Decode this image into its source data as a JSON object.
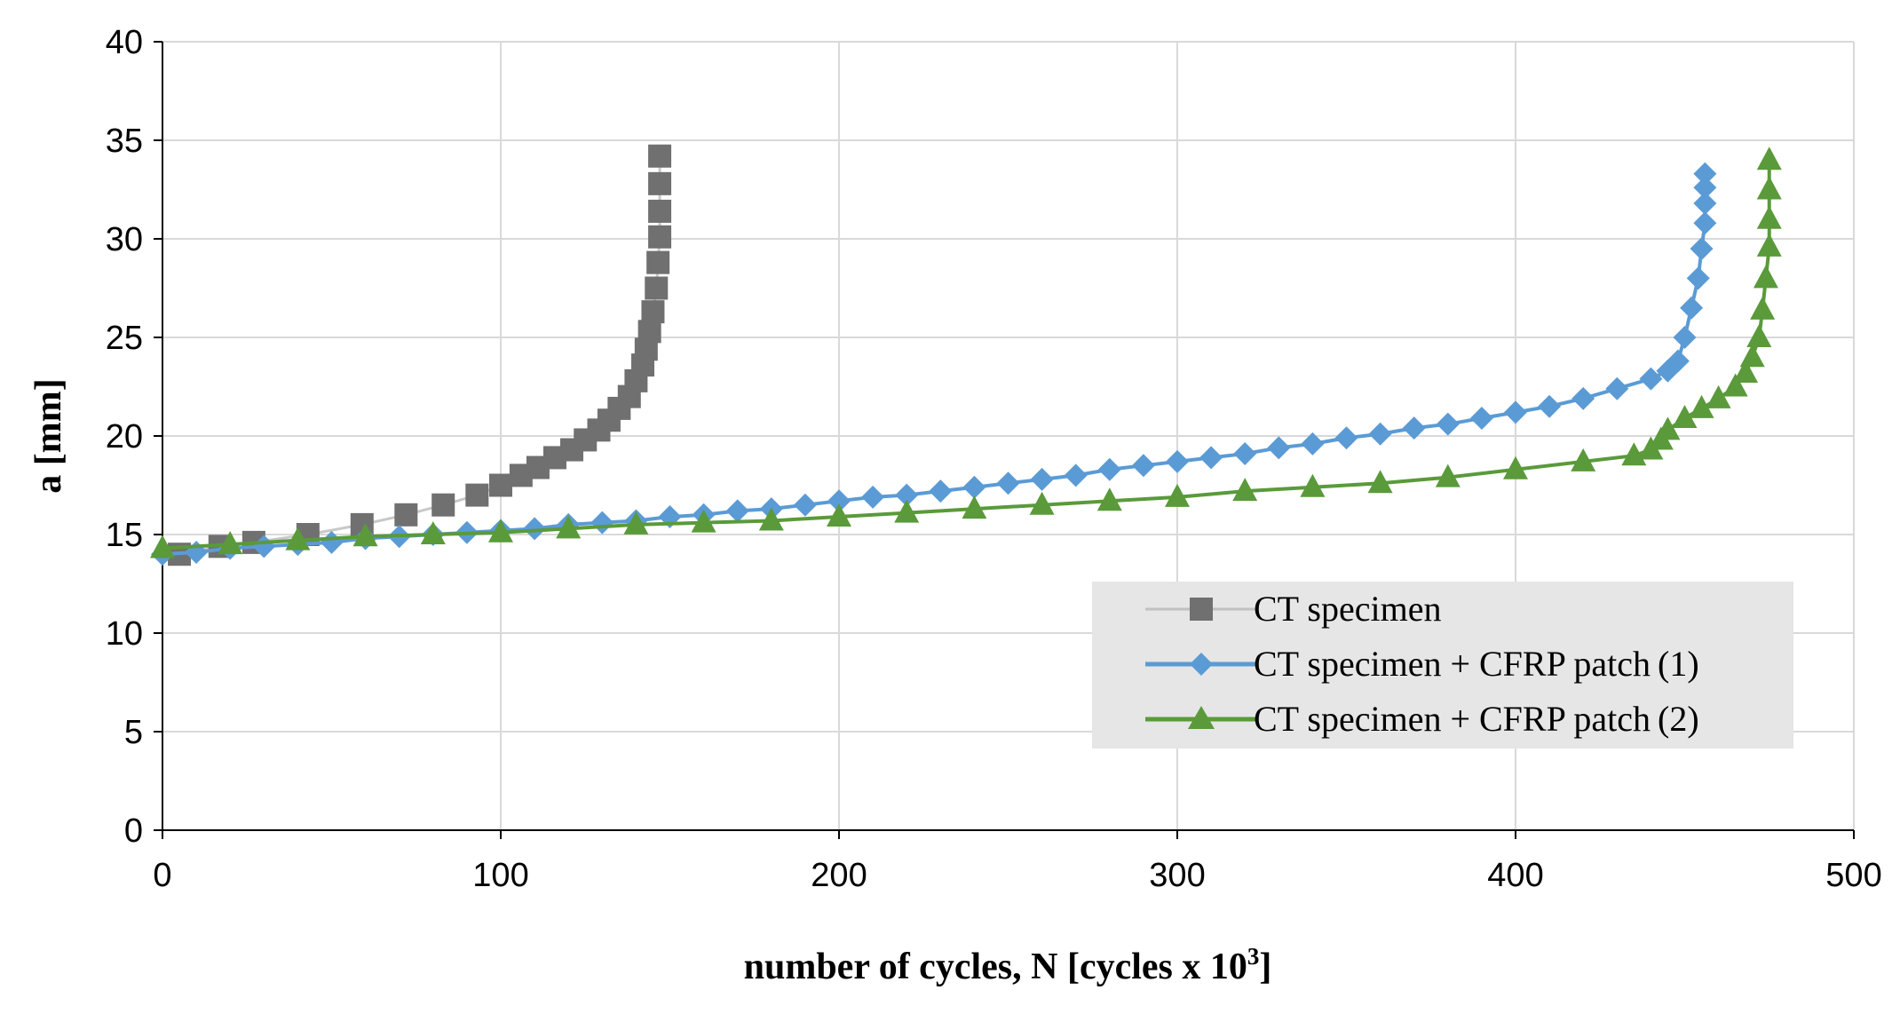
{
  "chart_data": {
    "type": "scatter",
    "title": "",
    "xlabel": "number of cycles, N [cycles x 10",
    "xlabel_sup": "3",
    "xlabel_end": "]",
    "ylabel": "a [mm]",
    "xlim": [
      0,
      500
    ],
    "ylim": [
      0,
      40
    ],
    "xticks": [
      0,
      100,
      200,
      300,
      400,
      500
    ],
    "yticks": [
      0,
      5,
      10,
      15,
      20,
      25,
      30,
      35,
      40
    ],
    "xtick_labels": [
      "0",
      "100",
      "200",
      "300",
      "400",
      "500"
    ],
    "ytick_labels": [
      "0",
      "5",
      "10",
      "15",
      "20",
      "25",
      "30",
      "35",
      "40"
    ],
    "grid": "both",
    "legend_position": "lower-right",
    "colors": {
      "gray": "#707070",
      "blue": "#5b9bd5",
      "green": "#5a9a3a",
      "legend_bg": "#e6e6e6",
      "grid": "#d9d9d9"
    },
    "series": [
      {
        "name": "CT specimen",
        "label_main": "CT specimen",
        "label_suffix": "",
        "marker": "square",
        "color": "#707070",
        "x": [
          5,
          17,
          27,
          43,
          59,
          72,
          83,
          93,
          100,
          106,
          111,
          116,
          121,
          125,
          129,
          132,
          135,
          138,
          140,
          142,
          143,
          144,
          145,
          146,
          146.5,
          147,
          147,
          147,
          147
        ],
        "y": [
          14.0,
          14.4,
          14.6,
          15.0,
          15.5,
          16.0,
          16.5,
          17.0,
          17.5,
          18.0,
          18.4,
          18.9,
          19.3,
          19.8,
          20.3,
          20.8,
          21.4,
          22.0,
          22.8,
          23.6,
          24.4,
          25.3,
          26.3,
          27.5,
          28.8,
          30.1,
          31.4,
          32.8,
          34.2
        ]
      },
      {
        "name": "CT specimen + CFRP patch (1)",
        "label_main": "CT specimen + CFRP patch",
        "label_suffix": "(1)",
        "marker": "diamond",
        "color": "#5b9bd5",
        "x": [
          0,
          10,
          20,
          30,
          40,
          50,
          60,
          70,
          80,
          90,
          100,
          110,
          120,
          130,
          140,
          150,
          160,
          170,
          180,
          190,
          200,
          210,
          220,
          230,
          240,
          250,
          260,
          270,
          280,
          290,
          300,
          310,
          320,
          330,
          340,
          350,
          360,
          370,
          380,
          390,
          400,
          410,
          420,
          430,
          440,
          445,
          448,
          450,
          452,
          454,
          455,
          456,
          456,
          456,
          456
        ],
        "y": [
          14.0,
          14.1,
          14.3,
          14.4,
          14.5,
          14.6,
          14.8,
          14.9,
          15.0,
          15.1,
          15.2,
          15.3,
          15.5,
          15.6,
          15.7,
          15.9,
          16.0,
          16.2,
          16.3,
          16.5,
          16.7,
          16.9,
          17.0,
          17.2,
          17.4,
          17.6,
          17.8,
          18.0,
          18.3,
          18.5,
          18.7,
          18.9,
          19.1,
          19.4,
          19.6,
          19.9,
          20.1,
          20.4,
          20.6,
          20.9,
          21.2,
          21.5,
          21.9,
          22.4,
          22.9,
          23.3,
          23.8,
          25.0,
          26.5,
          28.0,
          29.5,
          30.8,
          31.8,
          32.6,
          33.3
        ]
      },
      {
        "name": "CT specimen + CFRP patch (2)",
        "label_main": "CT specimen + CFRP patch",
        "label_suffix": "(2)",
        "marker": "triangle",
        "color": "#5a9a3a",
        "x": [
          0,
          20,
          40,
          60,
          80,
          100,
          120,
          140,
          160,
          180,
          200,
          220,
          240,
          260,
          280,
          300,
          320,
          340,
          360,
          380,
          400,
          420,
          435,
          440,
          443,
          445,
          450,
          455,
          460,
          465,
          468,
          470,
          472,
          473,
          474,
          475,
          475,
          475,
          475
        ],
        "y": [
          14.3,
          14.5,
          14.7,
          14.9,
          15.0,
          15.1,
          15.3,
          15.5,
          15.6,
          15.7,
          15.9,
          16.1,
          16.3,
          16.5,
          16.7,
          16.9,
          17.2,
          17.4,
          17.6,
          17.9,
          18.3,
          18.7,
          19.0,
          19.3,
          19.8,
          20.3,
          20.9,
          21.4,
          21.9,
          22.5,
          23.2,
          24.0,
          25.0,
          26.4,
          28.0,
          29.6,
          31.0,
          32.5,
          34.0
        ]
      }
    ]
  }
}
